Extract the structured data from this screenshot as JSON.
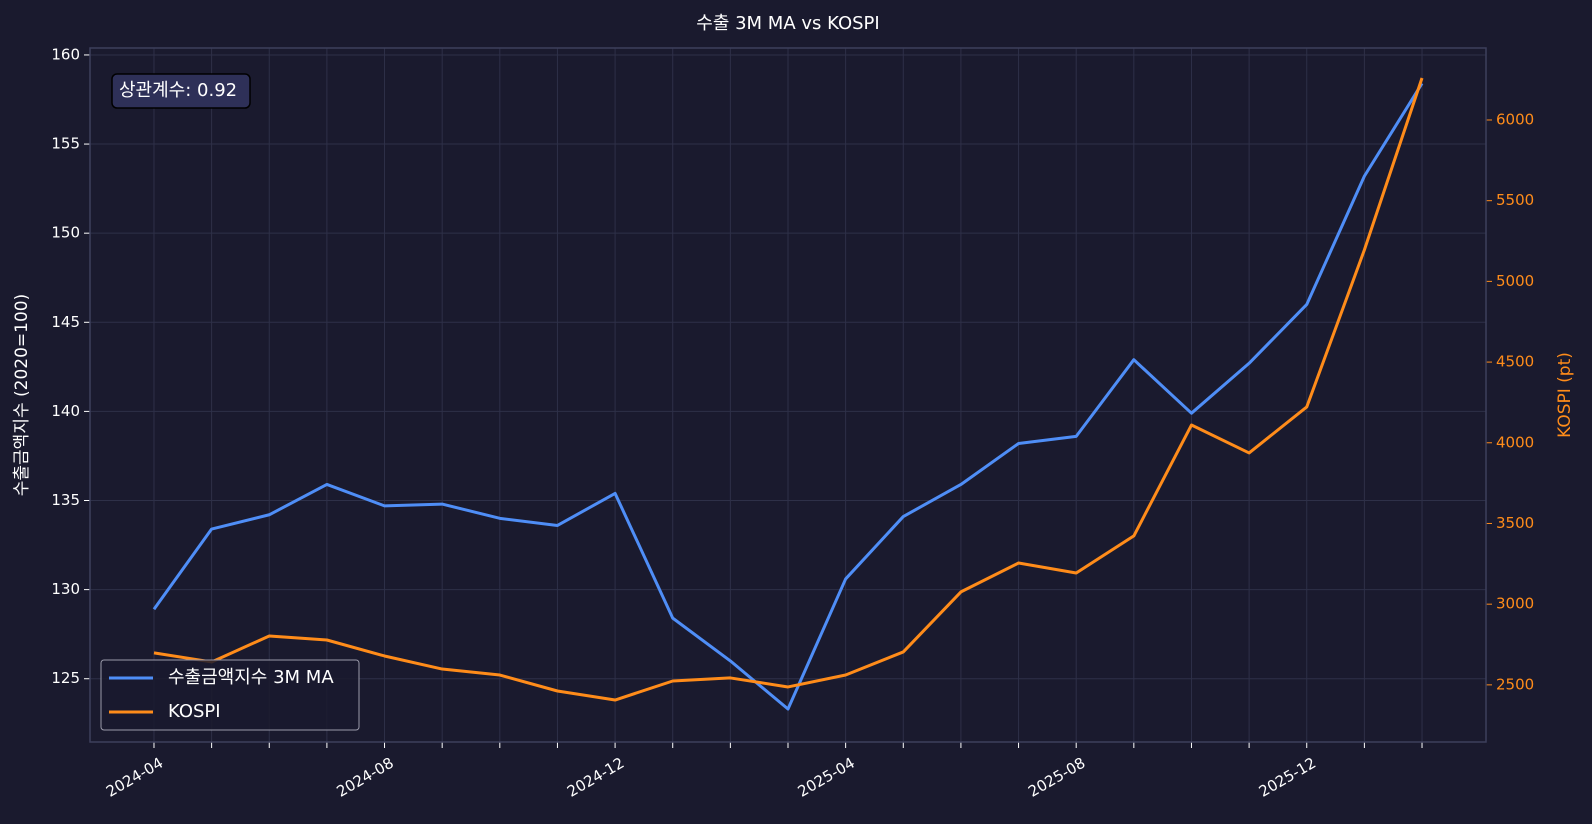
{
  "chart_data": {
    "type": "line",
    "title": "수출 3M MA vs KOSPI",
    "y_label": "수출금액지수 (2020=100)",
    "y2_label": "KOSPI (pt)",
    "annotation": "상관계수: 0.92",
    "categories": [
      "2024-04",
      null,
      null,
      null,
      "2024-08",
      null,
      null,
      null,
      "2024-12",
      null,
      null,
      null,
      "2025-04",
      null,
      null,
      null,
      "2025-08",
      null,
      null,
      null,
      "2025-12",
      null,
      null
    ],
    "series": [
      {
        "name": "수출금액지수 3M MA",
        "color": "#4f8ef7",
        "values": [
          128.9,
          133.4,
          134.2,
          135.9,
          134.7,
          134.8,
          134.0,
          133.6,
          135.4,
          128.4,
          126.0,
          123.3,
          130.6,
          134.1,
          135.9,
          138.2,
          138.6,
          142.9,
          139.9,
          142.7,
          146.0,
          153.2,
          158.4
        ]
      },
      {
        "name": "KOSPI",
        "color": "#ff8c1a",
        "axis": "y2",
        "values": [
          2698,
          2642,
          2803,
          2778,
          2679,
          2598,
          2561,
          2462,
          2406,
          2524,
          2543,
          2487,
          2561,
          2704,
          3076,
          3255,
          3193,
          3423,
          4110,
          3937,
          4222,
          5195,
          6260
        ]
      }
    ],
    "ylim": [
      121.45,
      160.39
    ],
    "yticks": [
      125,
      130,
      135,
      140,
      145,
      150,
      155,
      160
    ],
    "y2lim": [
      2146,
      6446
    ],
    "y2ticks": [
      2500,
      3000,
      3500,
      4000,
      4500,
      5000,
      5500,
      6000
    ],
    "grid": true,
    "legend": "lower left"
  }
}
